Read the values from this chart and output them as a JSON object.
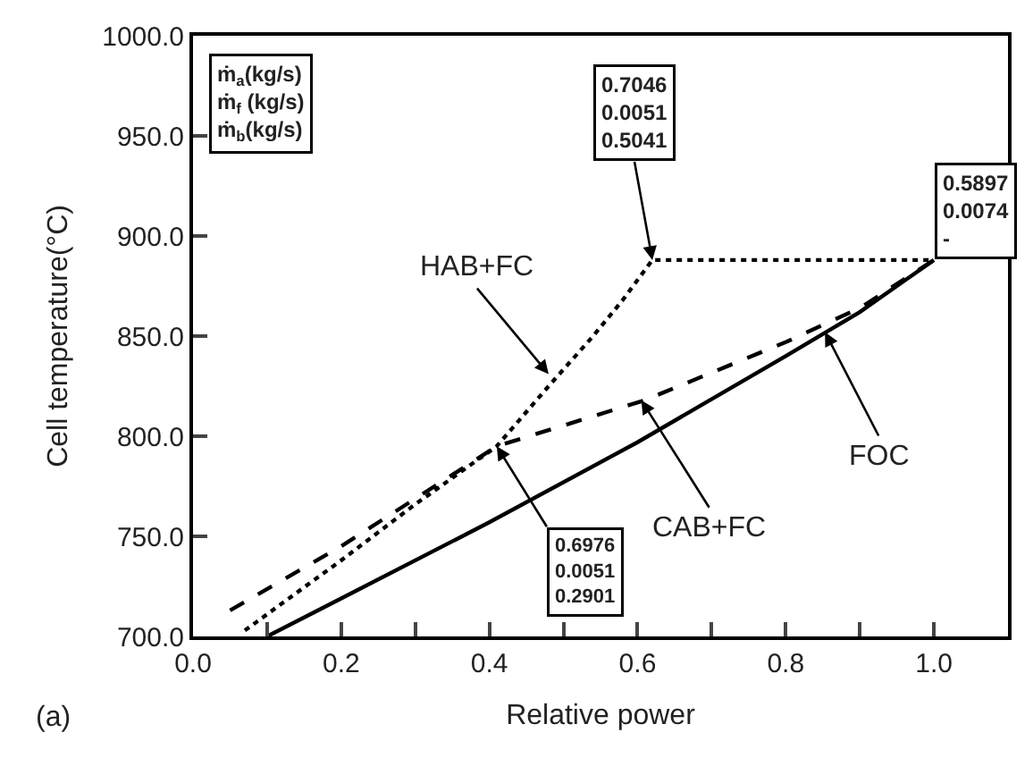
{
  "chart_data": {
    "type": "line",
    "xlabel": "Relative power",
    "ylabel": "Cell temperature(°C)",
    "xlim": [
      0,
      1.1
    ],
    "xticks": [
      {
        "value": 0,
        "label": "0.0"
      },
      {
        "value": 0.1,
        "label": null
      },
      {
        "value": 0.2,
        "label": "0.2"
      },
      {
        "value": 0.3,
        "label": null
      },
      {
        "value": 0.4,
        "label": "0.4"
      },
      {
        "value": 0.5,
        "label": null
      },
      {
        "value": 0.6,
        "label": "0.6"
      },
      {
        "value": 0.7,
        "label": null
      },
      {
        "value": 0.8,
        "label": "0.8"
      },
      {
        "value": 0.9,
        "label": null
      },
      {
        "value": 1.0,
        "label": "1.0"
      }
    ],
    "ylim": [
      700,
      1000
    ],
    "yticks": [
      {
        "value": 700,
        "label": "700.0"
      },
      {
        "value": 750,
        "label": "750.0"
      },
      {
        "value": 800,
        "label": "800.0"
      },
      {
        "value": 850,
        "label": "850.0"
      },
      {
        "value": 900,
        "label": "900.0"
      },
      {
        "value": 950,
        "label": "950.0"
      },
      {
        "value": 1000,
        "label": "1000.0"
      }
    ],
    "marker": "none",
    "series": [
      {
        "color": "#000000",
        "line_style": "solid",
        "x": [
          0.1,
          0.2,
          0.4,
          0.6,
          0.8,
          0.9,
          1.0
        ],
        "values": [
          700,
          719,
          757,
          797,
          840,
          862,
          888
        ]
      },
      {
        "color": "#000000",
        "line_style": "dashed",
        "x": [
          0.05,
          0.2,
          0.41,
          0.61,
          0.8,
          0.9,
          1.0
        ],
        "values": [
          713,
          745,
          795,
          818,
          847,
          864,
          888
        ]
      },
      {
        "color": "#000000",
        "line_style": "dotted",
        "x": [
          0.07,
          0.2,
          0.3,
          0.41,
          0.48,
          0.54,
          0.58,
          0.62,
          1.0
        ],
        "values": [
          703,
          738,
          766,
          795,
          825,
          850,
          868,
          888,
          888
        ]
      }
    ],
    "annotations": [
      "ṁ$_{a}$(kg/s)\nṁ$_{f}$ (kg/s)\nṁ$_{b}$(kg/s)",
      {
        "text": "0.7046\n0.0051\n0.5041",
        "x": 0.62,
        "y": 888
      },
      {
        "text": "0.5897\n0.0074\n-",
        "x": 1.0,
        "y": 888
      },
      {
        "text": "0.6976\n0.0051\n0.2901",
        "x": 0.41,
        "y": 795
      },
      {
        "text": "HAB+FC",
        "x": 0.48,
        "y": 831
      },
      {
        "text": "CAB+FC",
        "x": 0.605,
        "y": 818
      },
      {
        "text": "FOC",
        "x": 0.853,
        "y": 852
      },
      "(a)"
    ]
  }
}
